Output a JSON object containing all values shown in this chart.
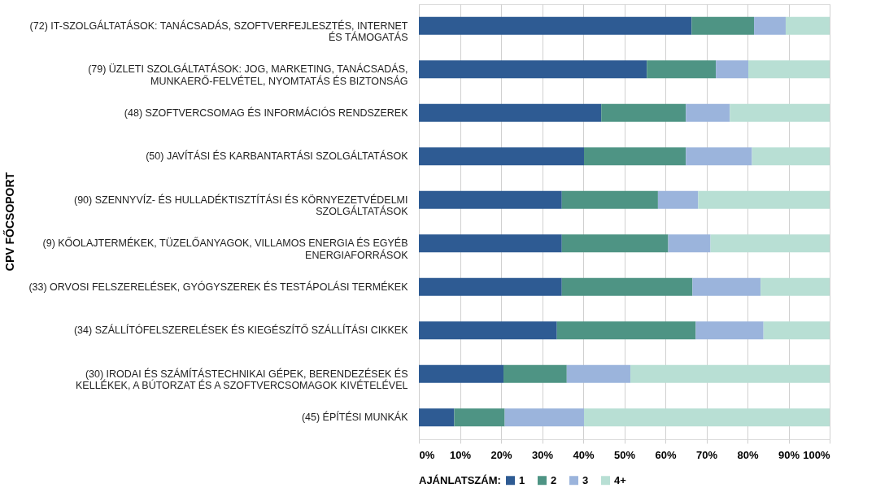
{
  "chart_data": {
    "type": "bar",
    "orientation": "horizontal",
    "stacked": true,
    "ylabel": "CPV FŐCSOPORT",
    "legend_title": "AJÁNLATSZÁM:",
    "legend": "bottom",
    "grid": "x",
    "categories": [
      "(72) IT-SZOLGÁLTATÁSOK: TANÁCSADÁS, SZOFTVERFEJLESZTÉS, INTERNET ÉS TÁMOGATÁS",
      "(79) ÜZLETI SZOLGÁLTATÁSOK: JOG, MARKETING, TANÁCSADÁS, MUNKAERŐ-FELVÉTEL, NYOMTATÁS ÉS BIZTONSÁG",
      "(48) SZOFTVERCSOMAG ÉS INFORMÁCIÓS RENDSZEREK",
      "(50) JAVÍTÁSI ÉS KARBANTARTÁSI SZOLGÁLTATÁSOK",
      "(90) SZENNYVÍZ- ÉS HULLADÉKTISZTÍTÁSI ÉS KÖRNYEZETVÉDELMI SZOLGÁLTATÁSOK",
      "(9) KŐOLAJTERMÉKEK, TÜZELŐANYAGOK, VILLAMOS ENERGIA ÉS EGYÉB ENERGIAFORRÁSOK",
      "(33) ORVOSI FELSZERELÉSEK, GYÓGYSZEREK ÉS TESTÁPOLÁSI TERMÉKEK",
      "(34) SZÁLLÍTÓFELSZERELÉSEK ÉS KIEGÉSZÍTŐ SZÁLLÍTÁSI CIKKEK",
      "(30) IRODAI ÉS SZÁMÍTÁSTECHNIKAI GÉPEK, BERENDEZÉSEK ÉS KELLÉKEK, A BÚTORZAT ÉS A SZOFTVERCSOMAGOK KIVÉTELÉVEL",
      "(45) ÉPÍTÉSI MUNKÁK"
    ],
    "series": [
      {
        "name": "1",
        "color": "#2e5b93",
        "values": [
          66.4,
          55.5,
          44.4,
          40.2,
          34.8,
          34.8,
          34.8,
          33.6,
          20.6,
          8.6
        ]
      },
      {
        "name": "2",
        "color": "#4e9484",
        "values": [
          15.2,
          16.8,
          20.6,
          24.8,
          23.4,
          25.9,
          31.8,
          33.8,
          15.4,
          12.3
        ]
      },
      {
        "name": "3",
        "color": "#9bb4dc",
        "values": [
          7.7,
          7.9,
          10.7,
          16.1,
          9.8,
          10.3,
          16.6,
          16.5,
          15.5,
          19.3
        ]
      },
      {
        "name": "4+",
        "color": "#b8dfd4",
        "values": [
          10.7,
          19.8,
          24.3,
          18.9,
          32.0,
          29.0,
          16.8,
          16.1,
          48.5,
          59.8
        ]
      }
    ],
    "xlim": [
      0,
      100
    ],
    "xticks": [
      {
        "value": 0,
        "label": "0%"
      },
      {
        "value": 10,
        "label": "10%"
      },
      {
        "value": 20,
        "label": "20%"
      },
      {
        "value": 30,
        "label": "30%"
      },
      {
        "value": 40,
        "label": "40%"
      },
      {
        "value": 50,
        "label": "50%"
      },
      {
        "value": 60,
        "label": "60%"
      },
      {
        "value": 70,
        "label": "70%"
      },
      {
        "value": 80,
        "label": "80%"
      },
      {
        "value": 90,
        "label": "90%"
      },
      {
        "value": 100,
        "label": "100%"
      }
    ]
  }
}
